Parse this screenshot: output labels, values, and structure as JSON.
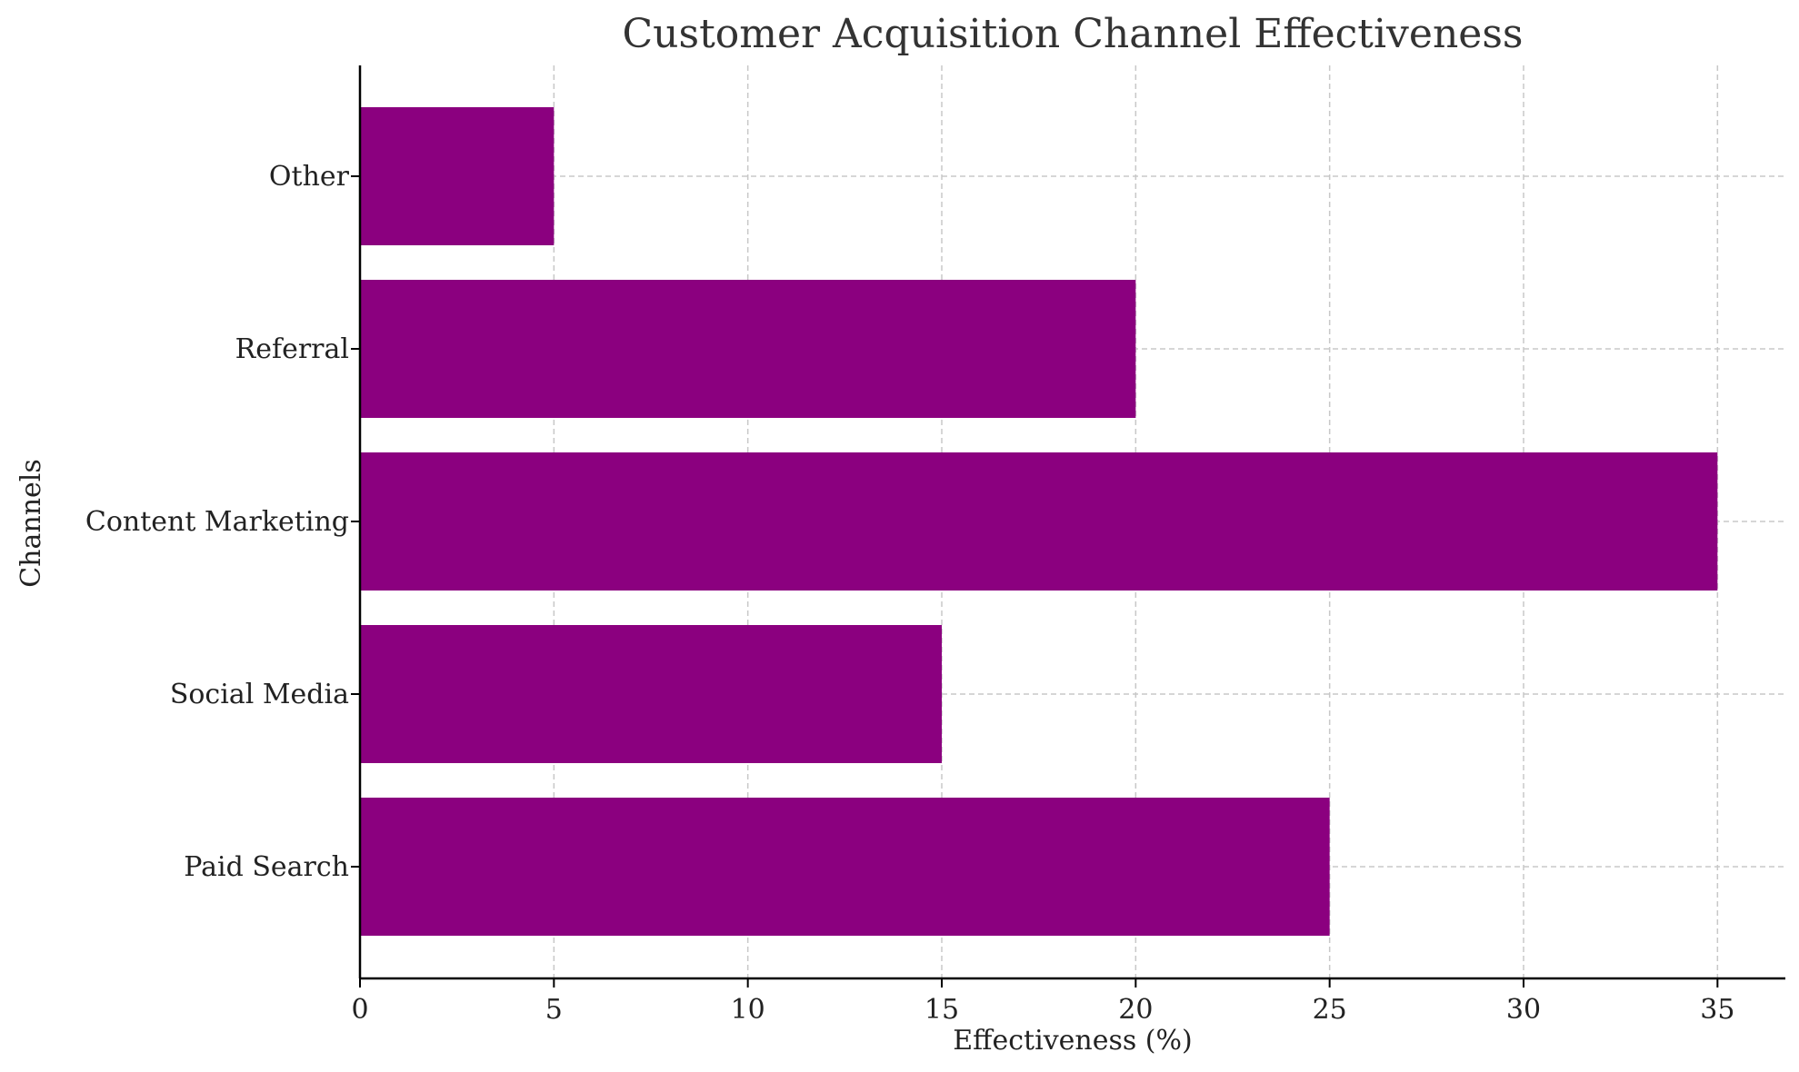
{
  "chart_data": {
    "type": "bar",
    "orientation": "horizontal",
    "title": "Customer Acquisition Channel Effectiveness",
    "xlabel": "Effectiveness (%)",
    "ylabel": "Channels",
    "categories": [
      "Paid Search",
      "Social Media",
      "Content Marketing",
      "Referral",
      "Other"
    ],
    "values": [
      25,
      15,
      35,
      20,
      5
    ],
    "xlim": [
      0,
      36.75
    ],
    "xticks": [
      0,
      5,
      10,
      15,
      20,
      25,
      30,
      35
    ],
    "grid": true,
    "bar_color": "#8b007f"
  }
}
